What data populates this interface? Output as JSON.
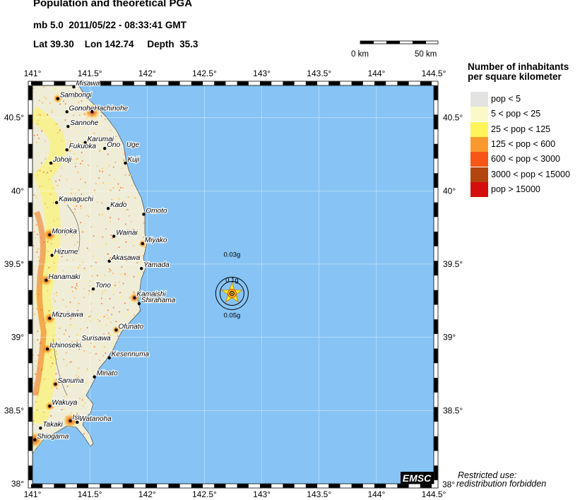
{
  "header": {
    "title": "Population and theoretical PGA",
    "event_line": "mb 5.0  2011/05/22 - 08:33:41 GMT",
    "location_line": "Lat 39.30    Lon 142.74     Depth  35.3"
  },
  "scale_bar": {
    "start_label": "0 km",
    "end_label": "50 km"
  },
  "map": {
    "lon_range": [
      141,
      144.5
    ],
    "lat_range": [
      38,
      40.72
    ],
    "lon_ticks": [
      "141°",
      "141.5°",
      "142°",
      "142.5°",
      "143°",
      "143.5°",
      "144°",
      "144.5°"
    ],
    "lon_tick_values": [
      141,
      141.5,
      142,
      142.5,
      143,
      143.5,
      144,
      144.5
    ],
    "lat_ticks": [
      "38°",
      "38.5°",
      "39°",
      "39.5°",
      "40°",
      "40.5°"
    ],
    "lat_tick_values": [
      38,
      38.5,
      39,
      39.5,
      40,
      40.5
    ],
    "sea_color": "#87c4f5",
    "land_color": "#efedd8",
    "epicenter": {
      "lon": 142.74,
      "lat": 39.3
    },
    "pga_labels": {
      "outer_top": "0.03g",
      "inner": "0.1g",
      "outer_bottom": "0.05g"
    },
    "cities": [
      {
        "name": "Misawa",
        "lon": 141.36,
        "lat": 40.71
      },
      {
        "name": "Sambongi",
        "lon": 141.22,
        "lat": 40.63
      },
      {
        "name": "Gonohe",
        "lon": 141.3,
        "lat": 40.54
      },
      {
        "name": "Hachinohe",
        "lon": 141.52,
        "lat": 40.54
      },
      {
        "name": "Sannohe",
        "lon": 141.31,
        "lat": 40.44
      },
      {
        "name": "Karumai",
        "lon": 141.46,
        "lat": 40.33
      },
      {
        "name": "Fukuoka",
        "lon": 141.3,
        "lat": 40.28
      },
      {
        "name": "Ono",
        "lon": 141.63,
        "lat": 40.29
      },
      {
        "name": "Uge",
        "lon": 141.8,
        "lat": 40.29
      },
      {
        "name": "Kuji",
        "lon": 141.81,
        "lat": 40.19
      },
      {
        "name": "Johoji",
        "lon": 141.16,
        "lat": 40.19
      },
      {
        "name": "Kawaguchi",
        "lon": 141.21,
        "lat": 39.92
      },
      {
        "name": "Kado",
        "lon": 141.66,
        "lat": 39.88
      },
      {
        "name": "Omoto",
        "lon": 141.97,
        "lat": 39.84
      },
      {
        "name": "Morioka",
        "lon": 141.15,
        "lat": 39.7
      },
      {
        "name": "Wainai",
        "lon": 141.71,
        "lat": 39.69
      },
      {
        "name": "Miyako",
        "lon": 141.96,
        "lat": 39.64
      },
      {
        "name": "Hizume",
        "lon": 141.17,
        "lat": 39.56
      },
      {
        "name": "Akasawa",
        "lon": 141.67,
        "lat": 39.52
      },
      {
        "name": "Yamada",
        "lon": 141.95,
        "lat": 39.47
      },
      {
        "name": "Hanamaki",
        "lon": 141.12,
        "lat": 39.39
      },
      {
        "name": "Tono",
        "lon": 141.53,
        "lat": 39.33
      },
      {
        "name": "Kamaishi",
        "lon": 141.89,
        "lat": 39.27
      },
      {
        "name": "Shirahama",
        "lon": 141.93,
        "lat": 39.23
      },
      {
        "name": "Mizusawa",
        "lon": 141.15,
        "lat": 39.13
      },
      {
        "name": "Ofunato",
        "lon": 141.73,
        "lat": 39.05
      },
      {
        "name": "Surisawa",
        "lon": 141.41,
        "lat": 38.97
      },
      {
        "name": "Ichinoseki",
        "lon": 141.13,
        "lat": 38.92
      },
      {
        "name": "Kesennuma",
        "lon": 141.67,
        "lat": 38.86
      },
      {
        "name": "Minato",
        "lon": 141.54,
        "lat": 38.73
      },
      {
        "name": "Sanuma",
        "lon": 141.2,
        "lat": 38.68
      },
      {
        "name": "Wakuya",
        "lon": 141.15,
        "lat": 38.53
      },
      {
        "name": "Ist",
        "lon": 141.33,
        "lat": 38.43
      },
      {
        "name": "Watanoha",
        "lon": 141.39,
        "lat": 38.42
      },
      {
        "name": "Takaki",
        "lon": 141.07,
        "lat": 38.38
      },
      {
        "name": "Shiogama",
        "lon": 141.02,
        "lat": 38.3
      }
    ],
    "logo": "EMSC"
  },
  "legend": {
    "title_line1": "Number of inhabitants",
    "title_line2": "per square kilometer",
    "items": [
      {
        "label": "pop < 5",
        "color": "#e3e3e1"
      },
      {
        "label": "5 < pop < 25",
        "color": "#fbf9c8"
      },
      {
        "label": "25 < pop < 125",
        "color": "#fdf45a"
      },
      {
        "label": "125 < pop < 600",
        "color": "#fa9a2e"
      },
      {
        "label": "600 < pop < 3000",
        "color": "#f75616"
      },
      {
        "label": "3000 < pop < 15000",
        "color": "#b3450f"
      },
      {
        "label": "pop > 15000",
        "color": "#d40d0d"
      }
    ]
  },
  "footer": {
    "line1": "Restricted use:",
    "line2": "redistribution forbidden"
  }
}
